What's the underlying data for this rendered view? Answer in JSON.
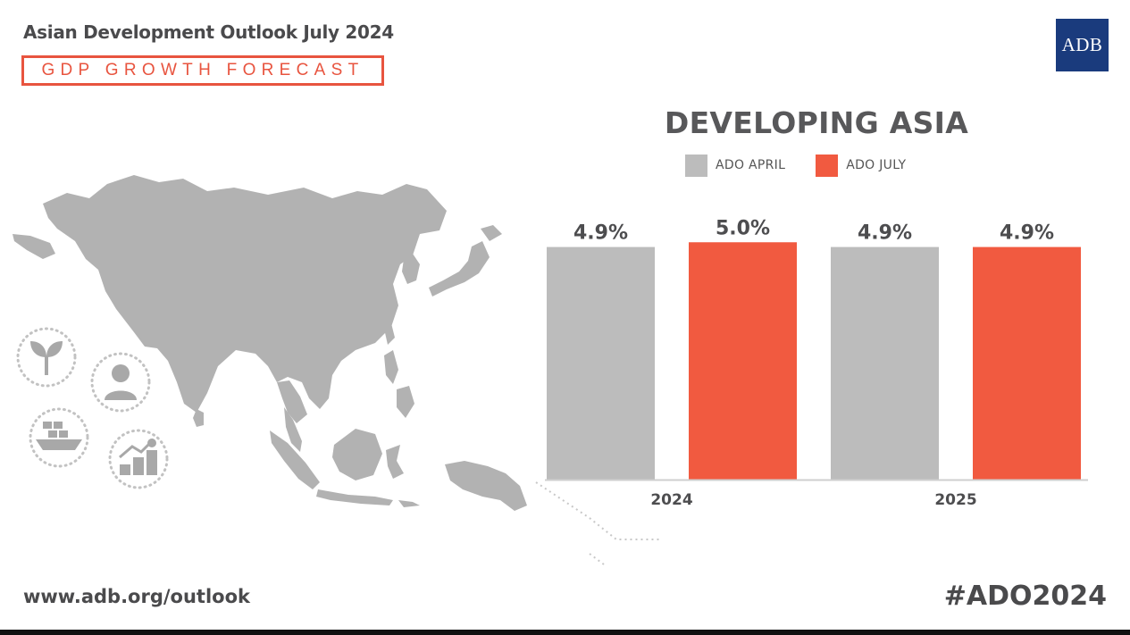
{
  "header": {
    "title": "Asian Development Outlook July 2024",
    "subtitle": "GDP GROWTH FORECAST",
    "logo_text": "ADB"
  },
  "footer": {
    "url": "www.adb.org/outlook",
    "hashtag": "#ADO2024"
  },
  "decor": {
    "map": "Asia-Pacific map silhouette",
    "icons": [
      "plant-icon",
      "person-icon",
      "cargo-ship-icon",
      "growth-coins-icon"
    ]
  },
  "colors": {
    "accent": "#e8543f",
    "bar_april": "#bcbcbc",
    "bar_july": "#f15a40",
    "logo_bg": "#1a3b7d",
    "map": "#b2b2b2"
  },
  "chart_data": {
    "type": "bar",
    "title": "DEVELOPING ASIA",
    "categories": [
      "2024",
      "2025"
    ],
    "series": [
      {
        "name": "ADO APRIL",
        "values": [
          4.9,
          4.9
        ],
        "labels": [
          "4.9%",
          "4.9%"
        ],
        "color": "#bcbcbc"
      },
      {
        "name": "ADO JULY",
        "values": [
          5.0,
          4.9
        ],
        "labels": [
          "5.0%",
          "4.9%"
        ],
        "color": "#f15a40"
      }
    ],
    "ylim": [
      0,
      5.4
    ],
    "grid": false,
    "legend": "top"
  }
}
